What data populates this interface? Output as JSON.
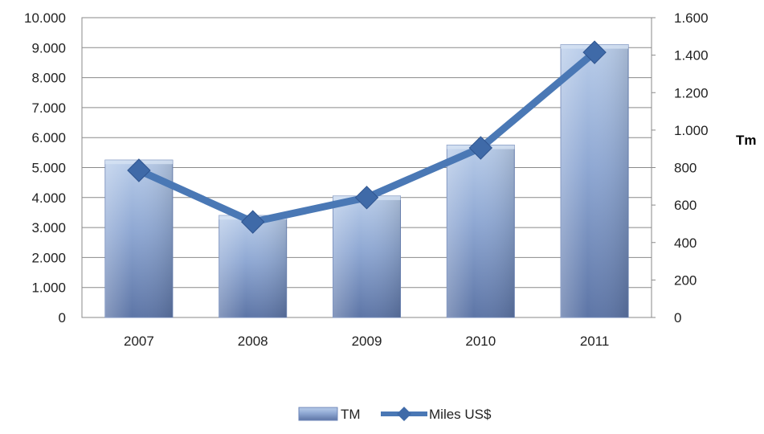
{
  "chart_data": {
    "type": "bar",
    "categories": [
      "2007",
      "2008",
      "2009",
      "2010",
      "2011"
    ],
    "series": [
      {
        "name": "TM",
        "type": "bar",
        "axis": "left",
        "values": [
          5250,
          3400,
          4050,
          5750,
          9100
        ],
        "color": "#8fa8d3"
      },
      {
        "name": "Miles US$",
        "type": "line",
        "axis": "right",
        "values": [
          785,
          510,
          640,
          905,
          1415
        ],
        "color": "#4a78b5"
      }
    ],
    "y_left": {
      "ylim": [
        0,
        10000
      ],
      "ticks": [
        0,
        1000,
        2000,
        3000,
        4000,
        5000,
        6000,
        7000,
        8000,
        9000,
        10000
      ],
      "tick_labels": [
        "0",
        "1.000",
        "2.000",
        "3.000",
        "4.000",
        "5.000",
        "6.000",
        "7.000",
        "8.000",
        "9.000",
        "10.000"
      ]
    },
    "y_right": {
      "ylim": [
        0,
        1600
      ],
      "ticks": [
        0,
        200,
        400,
        600,
        800,
        1000,
        1200,
        1400,
        1600
      ],
      "tick_labels": [
        "0",
        "200",
        "400",
        "600",
        "800",
        "1.000",
        "1.200",
        "1.400",
        "1.600"
      ],
      "label": "Tm"
    },
    "grid": true,
    "legend_position": "bottom"
  }
}
